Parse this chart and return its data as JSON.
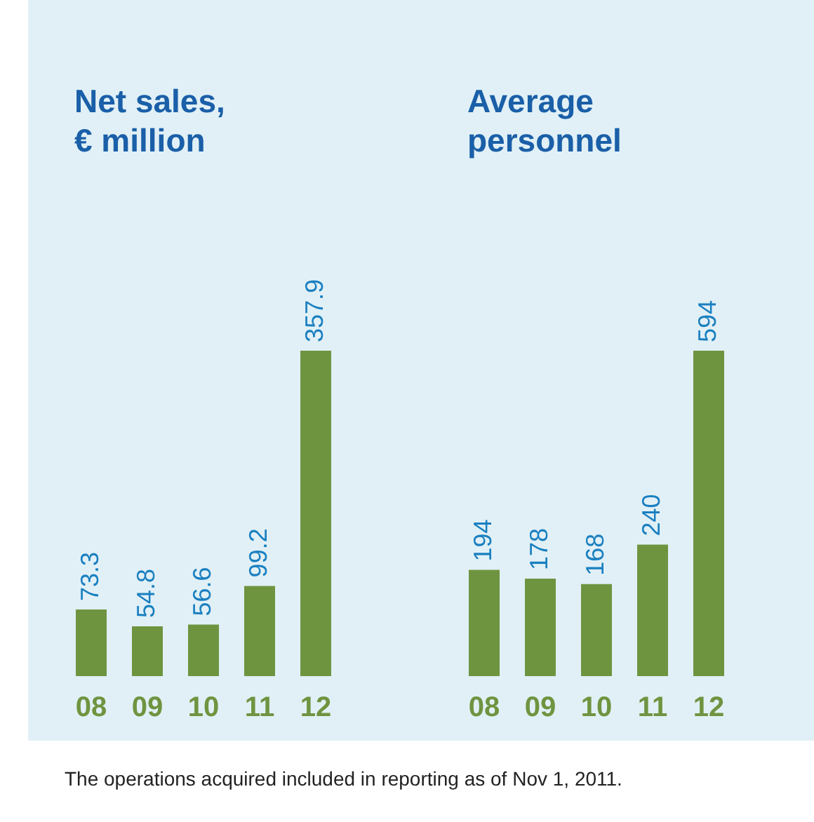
{
  "chart_data": [
    {
      "type": "bar",
      "title": "Net sales, € million",
      "categories": [
        "08",
        "09",
        "10",
        "11",
        "12"
      ],
      "values": [
        73.3,
        54.8,
        56.6,
        99.2,
        357.9
      ],
      "color": "#6f9440",
      "data_labels": true,
      "annotations": [
        "The operations acquired included in reporting as of Nov 1, 2011."
      ]
    },
    {
      "type": "bar",
      "title": "Average personnel",
      "categories": [
        "08",
        "09",
        "10",
        "11",
        "12"
      ],
      "values": [
        194,
        178,
        168,
        240,
        594
      ],
      "color": "#6f9440",
      "data_labels": true
    }
  ]
}
